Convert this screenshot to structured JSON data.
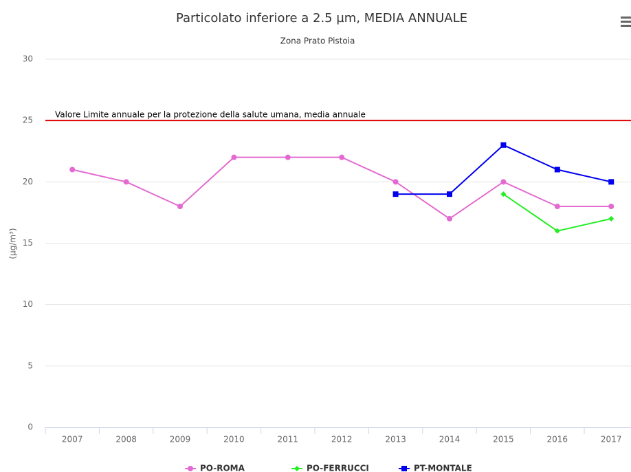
{
  "chart_data": {
    "type": "line",
    "title": "Particolato inferiore a 2.5 µm, MEDIA ANNUALE",
    "subtitle": "Zona Prato Pistoia",
    "y_axis_label": "(µg/m³)",
    "categories": [
      "2007",
      "2008",
      "2009",
      "2010",
      "2011",
      "2012",
      "2013",
      "2014",
      "2015",
      "2016",
      "2017"
    ],
    "series": [
      {
        "name": "PO-ROMA",
        "color": "#e36ad0",
        "marker": "circle",
        "values": [
          21,
          20,
          18,
          22,
          22,
          22,
          20,
          17,
          20,
          18,
          18
        ]
      },
      {
        "name": "PO-FERRUCCI",
        "color": "#22ee22",
        "marker": "diamond",
        "values": [
          null,
          null,
          null,
          null,
          null,
          null,
          null,
          null,
          19,
          16,
          17
        ]
      },
      {
        "name": "PT-MONTALE",
        "color": "#0000ee",
        "marker": "square",
        "values": [
          null,
          null,
          null,
          null,
          null,
          null,
          19,
          19,
          23,
          21,
          20
        ]
      }
    ],
    "plot_lines": [
      {
        "value": 25,
        "label": "Valore Limite annuale per la protezione della salute umana, media annuale",
        "color": "#e00000"
      }
    ],
    "ylim": [
      0,
      30
    ],
    "yticks": [
      0,
      5,
      10,
      15,
      20,
      25,
      30
    ],
    "grid": true,
    "legend": "bottom"
  }
}
